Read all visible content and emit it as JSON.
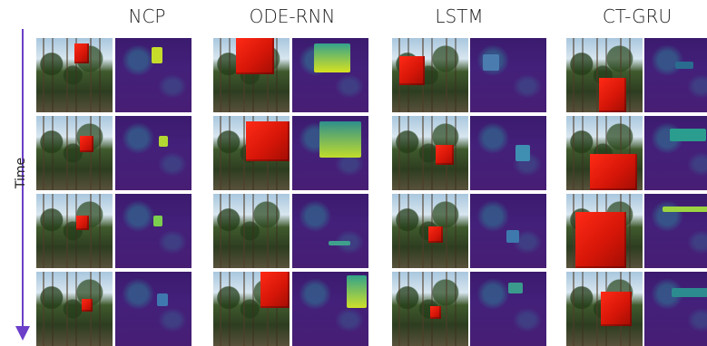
{
  "columns": [
    {
      "title": "NCP"
    },
    {
      "title": "ODE-RNN"
    },
    {
      "title": "LSTM"
    },
    {
      "title": "CT-GRU"
    }
  ],
  "axis": {
    "time_label": "Time"
  },
  "colors": {
    "arrow": "#6b3fc8",
    "cube": "#e01a0b",
    "heat_bg": "#43207a"
  }
}
